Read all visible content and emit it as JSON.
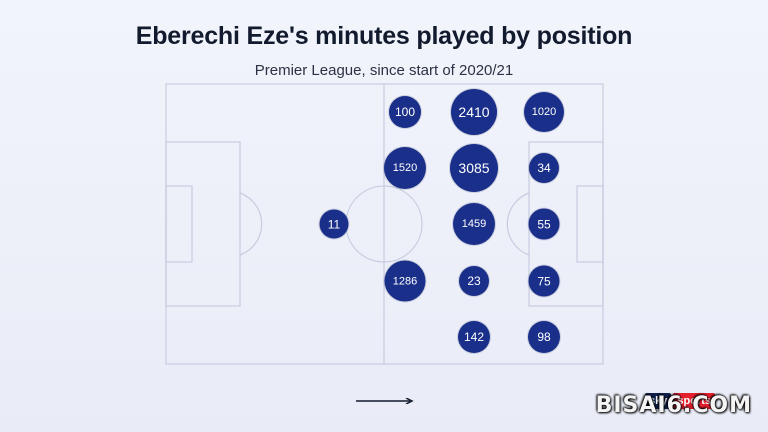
{
  "header": {
    "title": "Eberechi Eze's minutes played by position",
    "subtitle": "Premier League, since start of 2020/21"
  },
  "positions": [
    {
      "id": "lcb",
      "value": "11",
      "minutes": 11
    },
    {
      "id": "dm-left",
      "value": "100",
      "minutes": 100
    },
    {
      "id": "dm-leftcenter",
      "value": "1520",
      "minutes": 1520
    },
    {
      "id": "dm-rightcenter",
      "value": "1286",
      "minutes": 1286
    },
    {
      "id": "cm-left",
      "value": "2410",
      "minutes": 2410
    },
    {
      "id": "cm-center",
      "value": "3085",
      "minutes": 3085
    },
    {
      "id": "cm-mid",
      "value": "1459",
      "minutes": 1459
    },
    {
      "id": "cm-right",
      "value": "23",
      "minutes": 23
    },
    {
      "id": "cm-far",
      "value": "142",
      "minutes": 142
    },
    {
      "id": "am-left",
      "value": "1020",
      "minutes": 1020
    },
    {
      "id": "am-leftcenter",
      "value": "34",
      "minutes": 34
    },
    {
      "id": "am-center",
      "value": "55",
      "minutes": 55
    },
    {
      "id": "am-rightcenter",
      "value": "75",
      "minutes": 75
    },
    {
      "id": "am-right",
      "value": "98",
      "minutes": 98
    }
  ],
  "colors": {
    "bubble": "#1a2f8a",
    "pitch_lines": "#c7cce0"
  },
  "icons": {
    "direction": "right-arrow-icon"
  },
  "branding": {
    "logo_sky": "sky",
    "logo_sports": "sports",
    "watermark": "BISAI6.COM"
  }
}
